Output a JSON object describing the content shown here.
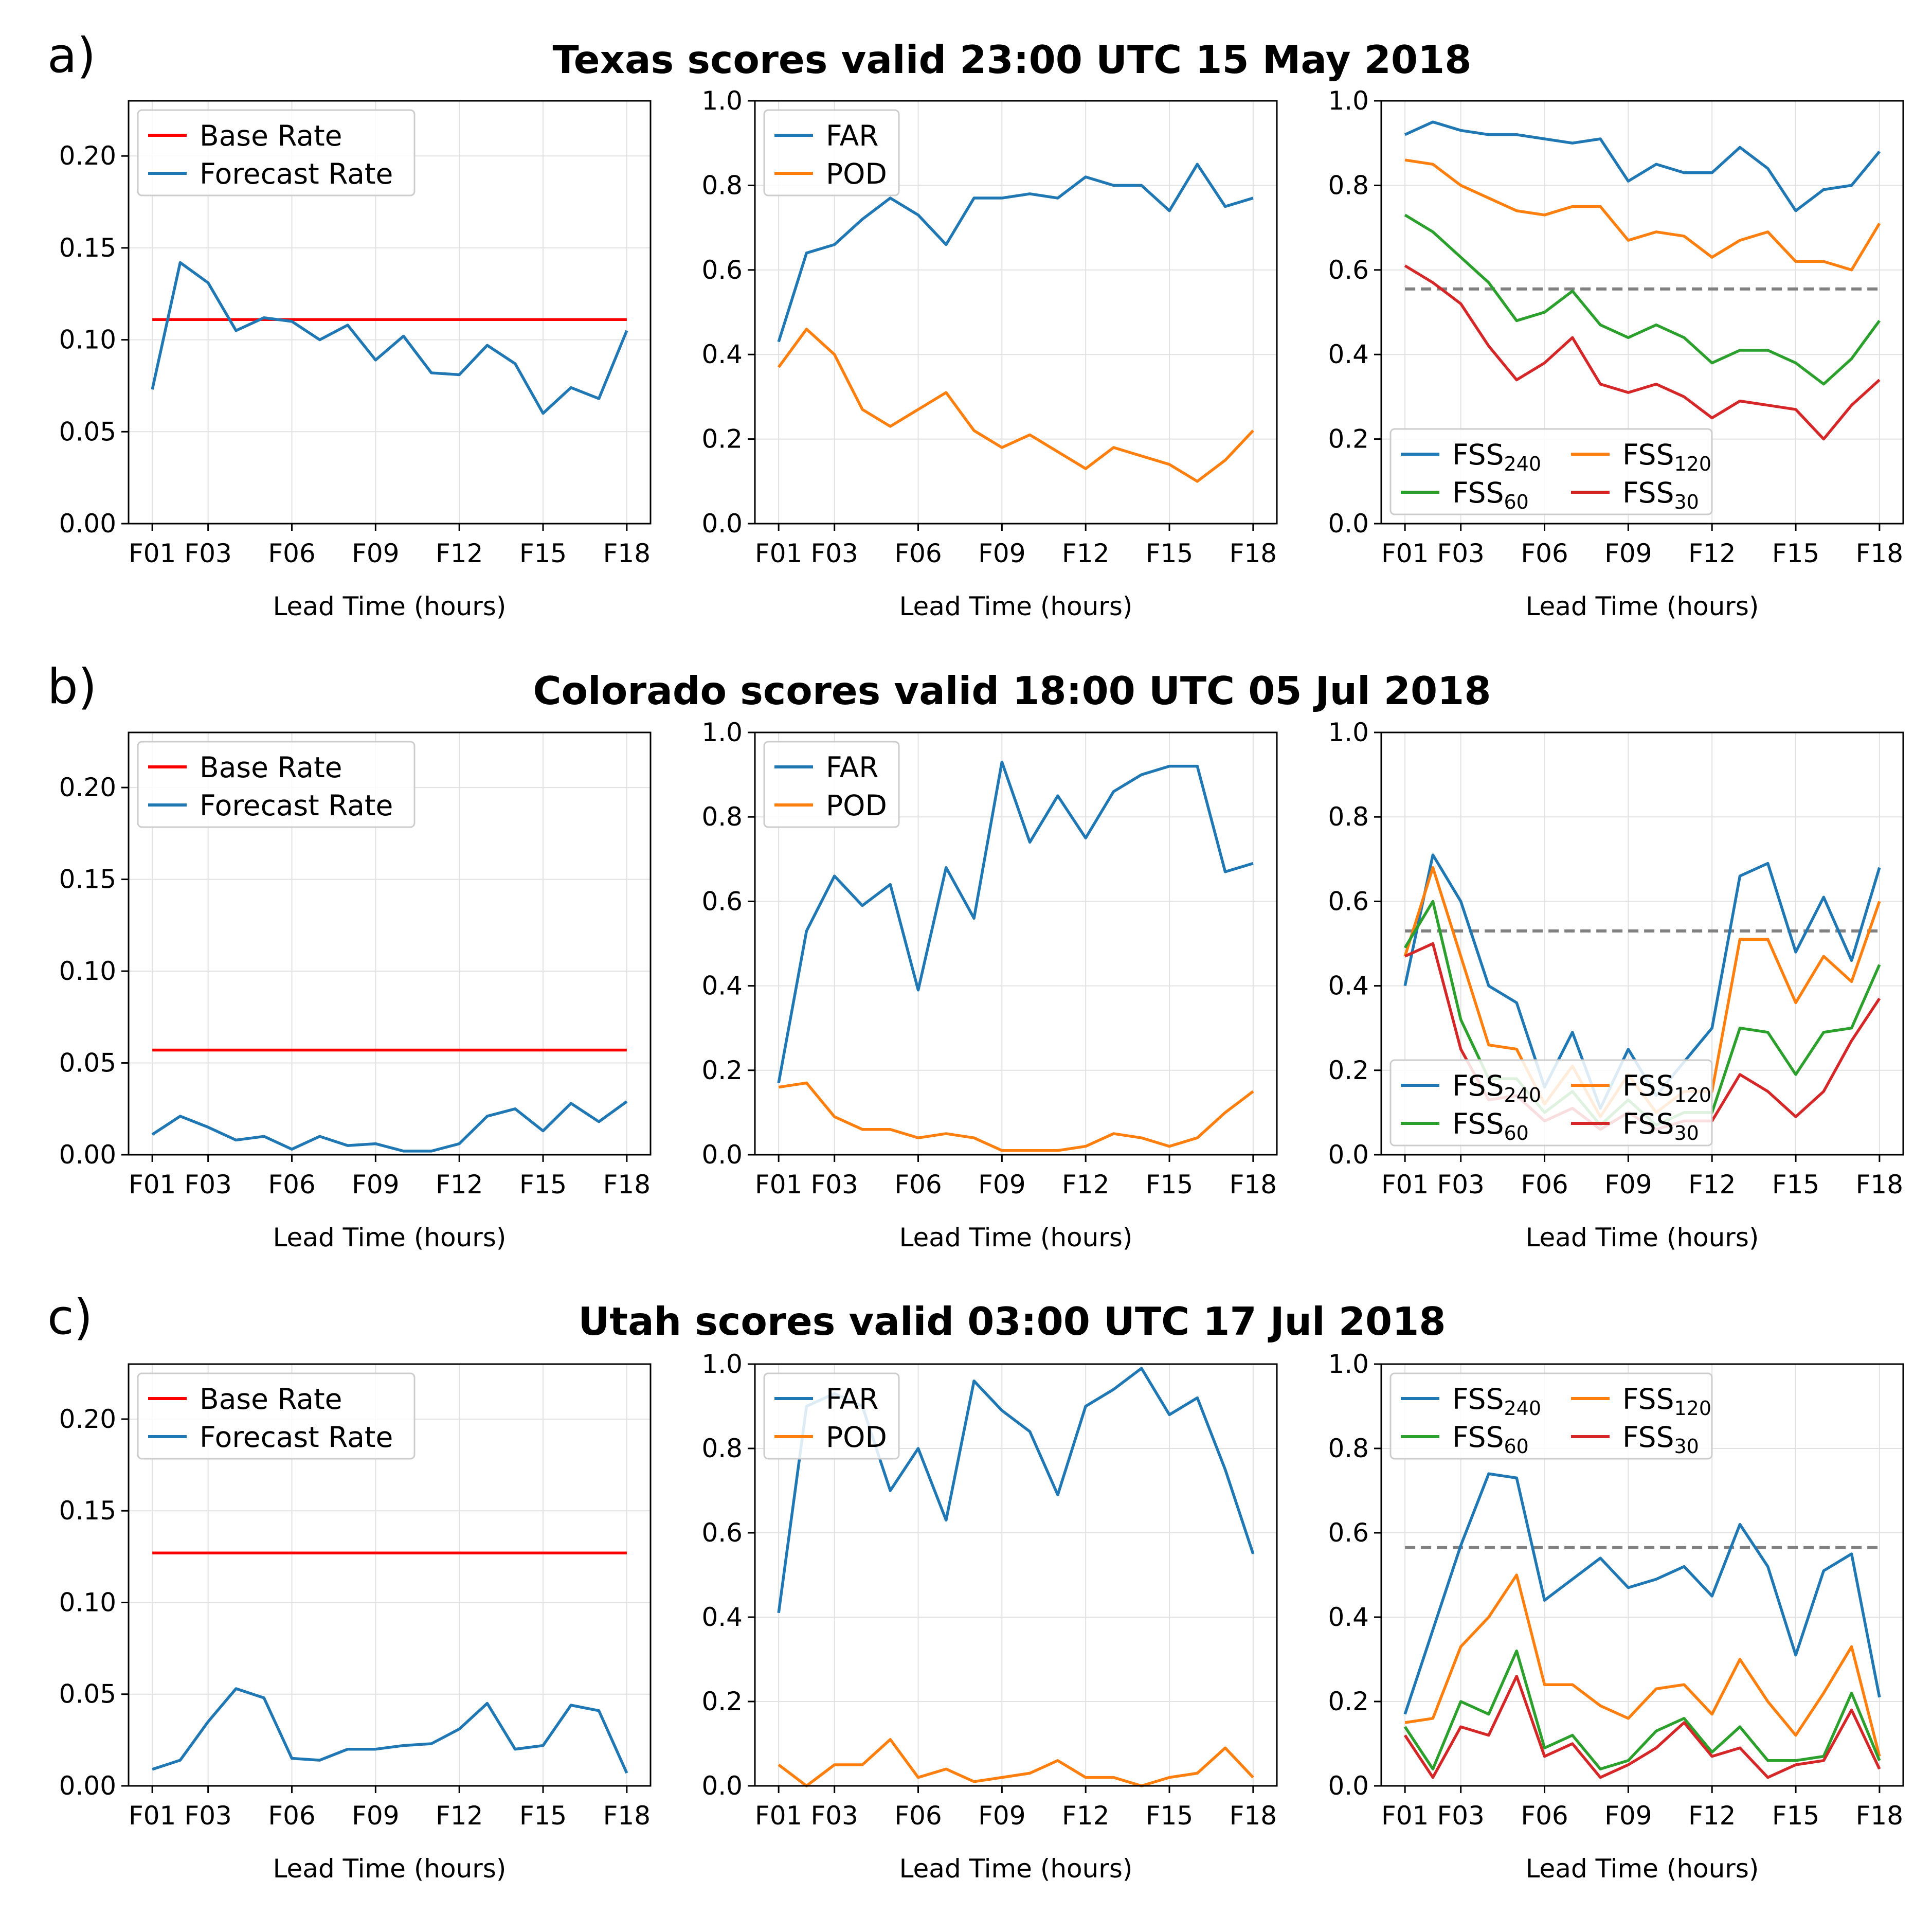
{
  "colors": {
    "blue": "#1f77b4",
    "orange": "#ff7f0e",
    "green": "#2ca02c",
    "red": "#d62728",
    "base_red": "#ff0000",
    "dashed_gray": "#808080"
  },
  "rows": [
    {
      "letter": "a)",
      "title": "Texas scores valid 23:00 UTC 15 May 2018"
    },
    {
      "letter": "b)",
      "title": "Colorado scores valid 18:00 UTC 05 Jul 2018"
    },
    {
      "letter": "c)",
      "title": "Utah scores valid 03:00 UTC 17 Jul 2018"
    }
  ],
  "chart_data": [
    {
      "panel": "a-left",
      "type": "line",
      "xlabel": "Lead Time (hours)",
      "x": [
        1,
        2,
        3,
        4,
        5,
        6,
        7,
        8,
        9,
        10,
        11,
        12,
        13,
        14,
        15,
        16,
        17,
        18
      ],
      "xticks": [
        1,
        3,
        6,
        9,
        12,
        15,
        18
      ],
      "xtick_labels": [
        "F01",
        "F03",
        "F06",
        "F09",
        "F12",
        "F15",
        "F18"
      ],
      "ylim": [
        0,
        0.23
      ],
      "yticks": [
        0,
        0.05,
        0.1,
        0.15,
        0.2
      ],
      "ytick_labels": [
        "0.00",
        "0.05",
        "0.10",
        "0.15",
        "0.20"
      ],
      "grid": true,
      "legend": "upper left",
      "legend_cols": 1,
      "series": [
        {
          "name": "Base Rate",
          "color": "#ff0000",
          "values": [
            0.111,
            0.111,
            0.111,
            0.111,
            0.111,
            0.111,
            0.111,
            0.111,
            0.111,
            0.111,
            0.111,
            0.111,
            0.111,
            0.111,
            0.111,
            0.111,
            0.111,
            0.111
          ]
        },
        {
          "name": "Forecast Rate",
          "color": "#1f77b4",
          "values": [
            0.073,
            0.142,
            0.131,
            0.105,
            0.112,
            0.11,
            0.1,
            0.108,
            0.089,
            0.102,
            0.082,
            0.081,
            0.097,
            0.087,
            0.06,
            0.074,
            0.068,
            0.105
          ]
        }
      ]
    },
    {
      "panel": "a-middle",
      "type": "line",
      "xlabel": "Lead Time (hours)",
      "x": [
        1,
        2,
        3,
        4,
        5,
        6,
        7,
        8,
        9,
        10,
        11,
        12,
        13,
        14,
        15,
        16,
        17,
        18
      ],
      "xticks": [
        1,
        3,
        6,
        9,
        12,
        15,
        18
      ],
      "xtick_labels": [
        "F01",
        "F03",
        "F06",
        "F09",
        "F12",
        "F15",
        "F18"
      ],
      "ylim": [
        0,
        1.0
      ],
      "yticks": [
        0,
        0.2,
        0.4,
        0.6,
        0.8,
        1.0
      ],
      "ytick_labels": [
        "0.0",
        "0.2",
        "0.4",
        "0.6",
        "0.8",
        "1.0"
      ],
      "grid": true,
      "legend": "upper left",
      "legend_cols": 1,
      "series": [
        {
          "name": "FAR",
          "color": "#1f77b4",
          "values": [
            0.43,
            0.64,
            0.66,
            0.72,
            0.77,
            0.73,
            0.66,
            0.77,
            0.77,
            0.78,
            0.77,
            0.82,
            0.8,
            0.8,
            0.74,
            0.85,
            0.75,
            0.77
          ]
        },
        {
          "name": "POD",
          "color": "#ff7f0e",
          "values": [
            0.37,
            0.46,
            0.4,
            0.27,
            0.23,
            0.27,
            0.31,
            0.22,
            0.18,
            0.21,
            0.17,
            0.13,
            0.18,
            0.16,
            0.14,
            0.1,
            0.15,
            0.22
          ]
        }
      ]
    },
    {
      "panel": "a-right",
      "type": "line",
      "xlabel": "Lead Time (hours)",
      "x": [
        1,
        2,
        3,
        4,
        5,
        6,
        7,
        8,
        9,
        10,
        11,
        12,
        13,
        14,
        15,
        16,
        17,
        18
      ],
      "xticks": [
        1,
        3,
        6,
        9,
        12,
        15,
        18
      ],
      "xtick_labels": [
        "F01",
        "F03",
        "F06",
        "F09",
        "F12",
        "F15",
        "F18"
      ],
      "ylim": [
        0,
        1.0
      ],
      "yticks": [
        0,
        0.2,
        0.4,
        0.6,
        0.8,
        1.0
      ],
      "ytick_labels": [
        "0.0",
        "0.2",
        "0.4",
        "0.6",
        "0.8",
        "1.0"
      ],
      "grid": true,
      "legend": "lower left",
      "legend_cols": 2,
      "reference_line": 0.555,
      "series": [
        {
          "name": "FSS",
          "sub": "240",
          "color": "#1f77b4",
          "values": [
            0.92,
            0.95,
            0.93,
            0.92,
            0.92,
            0.91,
            0.9,
            0.91,
            0.81,
            0.85,
            0.83,
            0.83,
            0.89,
            0.84,
            0.74,
            0.79,
            0.8,
            0.88
          ]
        },
        {
          "name": "FSS",
          "sub": "120",
          "color": "#ff7f0e",
          "values": [
            0.86,
            0.85,
            0.8,
            0.77,
            0.74,
            0.73,
            0.75,
            0.75,
            0.67,
            0.69,
            0.68,
            0.63,
            0.67,
            0.69,
            0.62,
            0.62,
            0.6,
            0.71
          ]
        },
        {
          "name": "FSS",
          "sub": "60",
          "color": "#2ca02c",
          "values": [
            0.73,
            0.69,
            0.63,
            0.57,
            0.48,
            0.5,
            0.55,
            0.47,
            0.44,
            0.47,
            0.44,
            0.38,
            0.41,
            0.41,
            0.38,
            0.33,
            0.39,
            0.48
          ]
        },
        {
          "name": "FSS",
          "sub": "30",
          "color": "#d62728",
          "values": [
            0.61,
            0.57,
            0.52,
            0.42,
            0.34,
            0.38,
            0.44,
            0.33,
            0.31,
            0.33,
            0.3,
            0.25,
            0.29,
            0.28,
            0.27,
            0.2,
            0.28,
            0.34
          ]
        }
      ]
    },
    {
      "panel": "b-left",
      "type": "line",
      "xlabel": "Lead Time (hours)",
      "x": [
        1,
        2,
        3,
        4,
        5,
        6,
        7,
        8,
        9,
        10,
        11,
        12,
        13,
        14,
        15,
        16,
        17,
        18
      ],
      "xticks": [
        1,
        3,
        6,
        9,
        12,
        15,
        18
      ],
      "xtick_labels": [
        "F01",
        "F03",
        "F06",
        "F09",
        "F12",
        "F15",
        "F18"
      ],
      "ylim": [
        0,
        0.23
      ],
      "yticks": [
        0,
        0.05,
        0.1,
        0.15,
        0.2
      ],
      "ytick_labels": [
        "0.00",
        "0.05",
        "0.10",
        "0.15",
        "0.20"
      ],
      "grid": true,
      "legend": "upper left",
      "legend_cols": 1,
      "series": [
        {
          "name": "Base Rate",
          "color": "#ff0000",
          "values": [
            0.057,
            0.057,
            0.057,
            0.057,
            0.057,
            0.057,
            0.057,
            0.057,
            0.057,
            0.057,
            0.057,
            0.057,
            0.057,
            0.057,
            0.057,
            0.057,
            0.057,
            0.057
          ]
        },
        {
          "name": "Forecast Rate",
          "color": "#1f77b4",
          "values": [
            0.011,
            0.021,
            0.015,
            0.008,
            0.01,
            0.003,
            0.01,
            0.005,
            0.006,
            0.002,
            0.002,
            0.006,
            0.021,
            0.025,
            0.013,
            0.028,
            0.018,
            0.029
          ]
        }
      ]
    },
    {
      "panel": "b-middle",
      "type": "line",
      "xlabel": "Lead Time (hours)",
      "x": [
        1,
        2,
        3,
        4,
        5,
        6,
        7,
        8,
        9,
        10,
        11,
        12,
        13,
        14,
        15,
        16,
        17,
        18
      ],
      "xticks": [
        1,
        3,
        6,
        9,
        12,
        15,
        18
      ],
      "xtick_labels": [
        "F01",
        "F03",
        "F06",
        "F09",
        "F12",
        "F15",
        "F18"
      ],
      "ylim": [
        0,
        1.0
      ],
      "yticks": [
        0,
        0.2,
        0.4,
        0.6,
        0.8,
        1.0
      ],
      "ytick_labels": [
        "0.0",
        "0.2",
        "0.4",
        "0.6",
        "0.8",
        "1.0"
      ],
      "grid": true,
      "legend": "upper left",
      "legend_cols": 1,
      "series": [
        {
          "name": "FAR",
          "color": "#1f77b4",
          "values": [
            0.17,
            0.53,
            0.66,
            0.59,
            0.64,
            0.39,
            0.68,
            0.56,
            0.93,
            0.74,
            0.85,
            0.75,
            0.86,
            0.9,
            0.92,
            0.92,
            0.67,
            0.69
          ]
        },
        {
          "name": "POD",
          "color": "#ff7f0e",
          "values": [
            0.16,
            0.17,
            0.09,
            0.06,
            0.06,
            0.04,
            0.05,
            0.04,
            0.01,
            0.01,
            0.01,
            0.02,
            0.05,
            0.04,
            0.02,
            0.04,
            0.1,
            0.15
          ]
        }
      ]
    },
    {
      "panel": "b-right",
      "type": "line",
      "xlabel": "Lead Time (hours)",
      "x": [
        1,
        2,
        3,
        4,
        5,
        6,
        7,
        8,
        9,
        10,
        11,
        12,
        13,
        14,
        15,
        16,
        17,
        18
      ],
      "xticks": [
        1,
        3,
        6,
        9,
        12,
        15,
        18
      ],
      "xtick_labels": [
        "F01",
        "F03",
        "F06",
        "F09",
        "F12",
        "F15",
        "F18"
      ],
      "ylim": [
        0,
        1.0
      ],
      "yticks": [
        0,
        0.2,
        0.4,
        0.6,
        0.8,
        1.0
      ],
      "ytick_labels": [
        "0.0",
        "0.2",
        "0.4",
        "0.6",
        "0.8",
        "1.0"
      ],
      "grid": true,
      "legend": "lower left",
      "legend_cols": 2,
      "reference_line": 0.53,
      "series": [
        {
          "name": "FSS",
          "sub": "240",
          "color": "#1f77b4",
          "values": [
            0.4,
            0.71,
            0.6,
            0.4,
            0.36,
            0.16,
            0.29,
            0.11,
            0.25,
            0.14,
            0.22,
            0.3,
            0.66,
            0.69,
            0.48,
            0.61,
            0.46,
            0.68
          ]
        },
        {
          "name": "FSS",
          "sub": "120",
          "color": "#ff7f0e",
          "values": [
            0.47,
            0.68,
            0.47,
            0.26,
            0.25,
            0.12,
            0.21,
            0.09,
            0.19,
            0.1,
            0.15,
            0.15,
            0.51,
            0.51,
            0.36,
            0.47,
            0.41,
            0.6
          ]
        },
        {
          "name": "FSS",
          "sub": "60",
          "color": "#2ca02c",
          "values": [
            0.49,
            0.6,
            0.32,
            0.18,
            0.18,
            0.1,
            0.15,
            0.07,
            0.13,
            0.07,
            0.1,
            0.1,
            0.3,
            0.29,
            0.19,
            0.29,
            0.3,
            0.45
          ]
        },
        {
          "name": "FSS",
          "sub": "30",
          "color": "#d62728",
          "values": [
            0.47,
            0.5,
            0.25,
            0.13,
            0.14,
            0.08,
            0.11,
            0.06,
            0.1,
            0.06,
            0.08,
            0.08,
            0.19,
            0.15,
            0.09,
            0.15,
            0.27,
            0.37
          ]
        }
      ]
    },
    {
      "panel": "c-left",
      "type": "line",
      "xlabel": "Lead Time (hours)",
      "x": [
        1,
        2,
        3,
        4,
        5,
        6,
        7,
        8,
        9,
        10,
        11,
        12,
        13,
        14,
        15,
        16,
        17,
        18
      ],
      "xticks": [
        1,
        3,
        6,
        9,
        12,
        15,
        18
      ],
      "xtick_labels": [
        "F01",
        "F03",
        "F06",
        "F09",
        "F12",
        "F15",
        "F18"
      ],
      "ylim": [
        0,
        0.23
      ],
      "yticks": [
        0,
        0.05,
        0.1,
        0.15,
        0.2
      ],
      "ytick_labels": [
        "0.00",
        "0.05",
        "0.10",
        "0.15",
        "0.20"
      ],
      "grid": true,
      "legend": "upper left",
      "legend_cols": 1,
      "series": [
        {
          "name": "Base Rate",
          "color": "#ff0000",
          "values": [
            0.127,
            0.127,
            0.127,
            0.127,
            0.127,
            0.127,
            0.127,
            0.127,
            0.127,
            0.127,
            0.127,
            0.127,
            0.127,
            0.127,
            0.127,
            0.127,
            0.127,
            0.127
          ]
        },
        {
          "name": "Forecast Rate",
          "color": "#1f77b4",
          "values": [
            0.009,
            0.014,
            0.035,
            0.053,
            0.048,
            0.015,
            0.014,
            0.02,
            0.02,
            0.022,
            0.023,
            0.031,
            0.045,
            0.02,
            0.022,
            0.044,
            0.041,
            0.007
          ]
        }
      ]
    },
    {
      "panel": "c-middle",
      "type": "line",
      "xlabel": "Lead Time (hours)",
      "x": [
        1,
        2,
        3,
        4,
        5,
        6,
        7,
        8,
        9,
        10,
        11,
        12,
        13,
        14,
        15,
        16,
        17,
        18
      ],
      "xticks": [
        1,
        3,
        6,
        9,
        12,
        15,
        18
      ],
      "xtick_labels": [
        "F01",
        "F03",
        "F06",
        "F09",
        "F12",
        "F15",
        "F18"
      ],
      "ylim": [
        0,
        1.0
      ],
      "yticks": [
        0,
        0.2,
        0.4,
        0.6,
        0.8,
        1.0
      ],
      "ytick_labels": [
        "0.0",
        "0.2",
        "0.4",
        "0.6",
        "0.8",
        "1.0"
      ],
      "grid": true,
      "legend": "upper left",
      "legend_cols": 1,
      "series": [
        {
          "name": "FAR",
          "color": "#1f77b4",
          "values": [
            0.41,
            0.9,
            0.93,
            0.9,
            0.7,
            0.8,
            0.63,
            0.96,
            0.89,
            0.84,
            0.69,
            0.9,
            0.94,
            0.99,
            0.88,
            0.92,
            0.75,
            0.55
          ]
        },
        {
          "name": "POD",
          "color": "#ff7f0e",
          "values": [
            0.05,
            0.0,
            0.05,
            0.05,
            0.11,
            0.02,
            0.04,
            0.01,
            0.02,
            0.03,
            0.06,
            0.02,
            0.02,
            0.0,
            0.02,
            0.03,
            0.09,
            0.02
          ]
        }
      ]
    },
    {
      "panel": "c-right",
      "type": "line",
      "xlabel": "Lead Time (hours)",
      "x": [
        1,
        2,
        3,
        4,
        5,
        6,
        7,
        8,
        9,
        10,
        11,
        12,
        13,
        14,
        15,
        16,
        17,
        18
      ],
      "xticks": [
        1,
        3,
        6,
        9,
        12,
        15,
        18
      ],
      "xtick_labels": [
        "F01",
        "F03",
        "F06",
        "F09",
        "F12",
        "F15",
        "F18"
      ],
      "ylim": [
        0,
        1.0
      ],
      "yticks": [
        0,
        0.2,
        0.4,
        0.6,
        0.8,
        1.0
      ],
      "ytick_labels": [
        "0.0",
        "0.2",
        "0.4",
        "0.6",
        "0.8",
        "1.0"
      ],
      "grid": true,
      "legend": "upper left",
      "legend_cols": 2,
      "reference_line": 0.565,
      "series": [
        {
          "name": "FSS",
          "sub": "240",
          "color": "#1f77b4",
          "values": [
            0.17,
            0.37,
            0.57,
            0.74,
            0.73,
            0.44,
            0.49,
            0.54,
            0.47,
            0.49,
            0.52,
            0.45,
            0.62,
            0.52,
            0.31,
            0.51,
            0.55,
            0.21
          ]
        },
        {
          "name": "FSS",
          "sub": "120",
          "color": "#ff7f0e",
          "values": [
            0.15,
            0.16,
            0.33,
            0.4,
            0.5,
            0.24,
            0.24,
            0.19,
            0.16,
            0.23,
            0.24,
            0.17,
            0.3,
            0.2,
            0.12,
            0.22,
            0.33,
            0.07
          ]
        },
        {
          "name": "FSS",
          "sub": "60",
          "color": "#2ca02c",
          "values": [
            0.14,
            0.04,
            0.2,
            0.17,
            0.32,
            0.09,
            0.12,
            0.04,
            0.06,
            0.13,
            0.16,
            0.08,
            0.14,
            0.06,
            0.06,
            0.07,
            0.22,
            0.06
          ]
        },
        {
          "name": "FSS",
          "sub": "30",
          "color": "#d62728",
          "values": [
            0.12,
            0.02,
            0.14,
            0.12,
            0.26,
            0.07,
            0.1,
            0.02,
            0.05,
            0.09,
            0.15,
            0.07,
            0.09,
            0.02,
            0.05,
            0.06,
            0.18,
            0.04
          ]
        }
      ]
    }
  ]
}
